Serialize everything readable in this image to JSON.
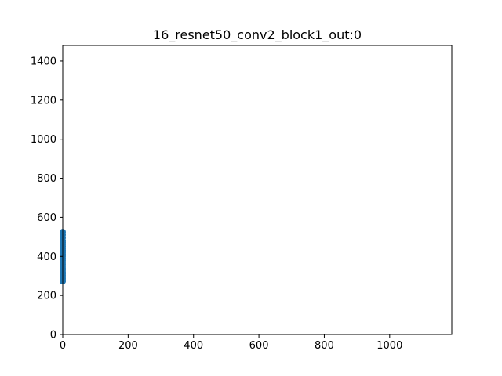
{
  "chart_data": {
    "type": "scatter",
    "title": "16_resnet50_conv2_block1_out:0",
    "xlabel": "",
    "ylabel": "",
    "xlim": [
      0,
      1190
    ],
    "ylim": [
      0,
      1480
    ],
    "x_ticks": [
      "0",
      "200",
      "400",
      "600",
      "800",
      "1000"
    ],
    "x_tick_values": [
      0,
      200,
      400,
      600,
      800,
      1000
    ],
    "y_ticks": [
      "0",
      "200",
      "400",
      "600",
      "800",
      "1000",
      "1200",
      "1400"
    ],
    "y_tick_values": [
      0,
      200,
      400,
      600,
      800,
      1000,
      1200,
      1400
    ],
    "grid": false,
    "point_color": "#1f77b4",
    "series": [
      {
        "x": [
          0,
          0,
          0,
          0,
          0,
          0,
          0,
          0,
          0,
          0,
          0,
          0,
          0,
          0,
          0,
          0,
          0,
          0,
          0,
          0,
          0,
          0,
          0,
          0,
          0,
          0
        ],
        "y": [
          272,
          280,
          288,
          296,
          304,
          312,
          320,
          330,
          340,
          350,
          360,
          370,
          380,
          390,
          400,
          410,
          420,
          430,
          440,
          450,
          460,
          470,
          480,
          495,
          510,
          525
        ]
      }
    ]
  }
}
